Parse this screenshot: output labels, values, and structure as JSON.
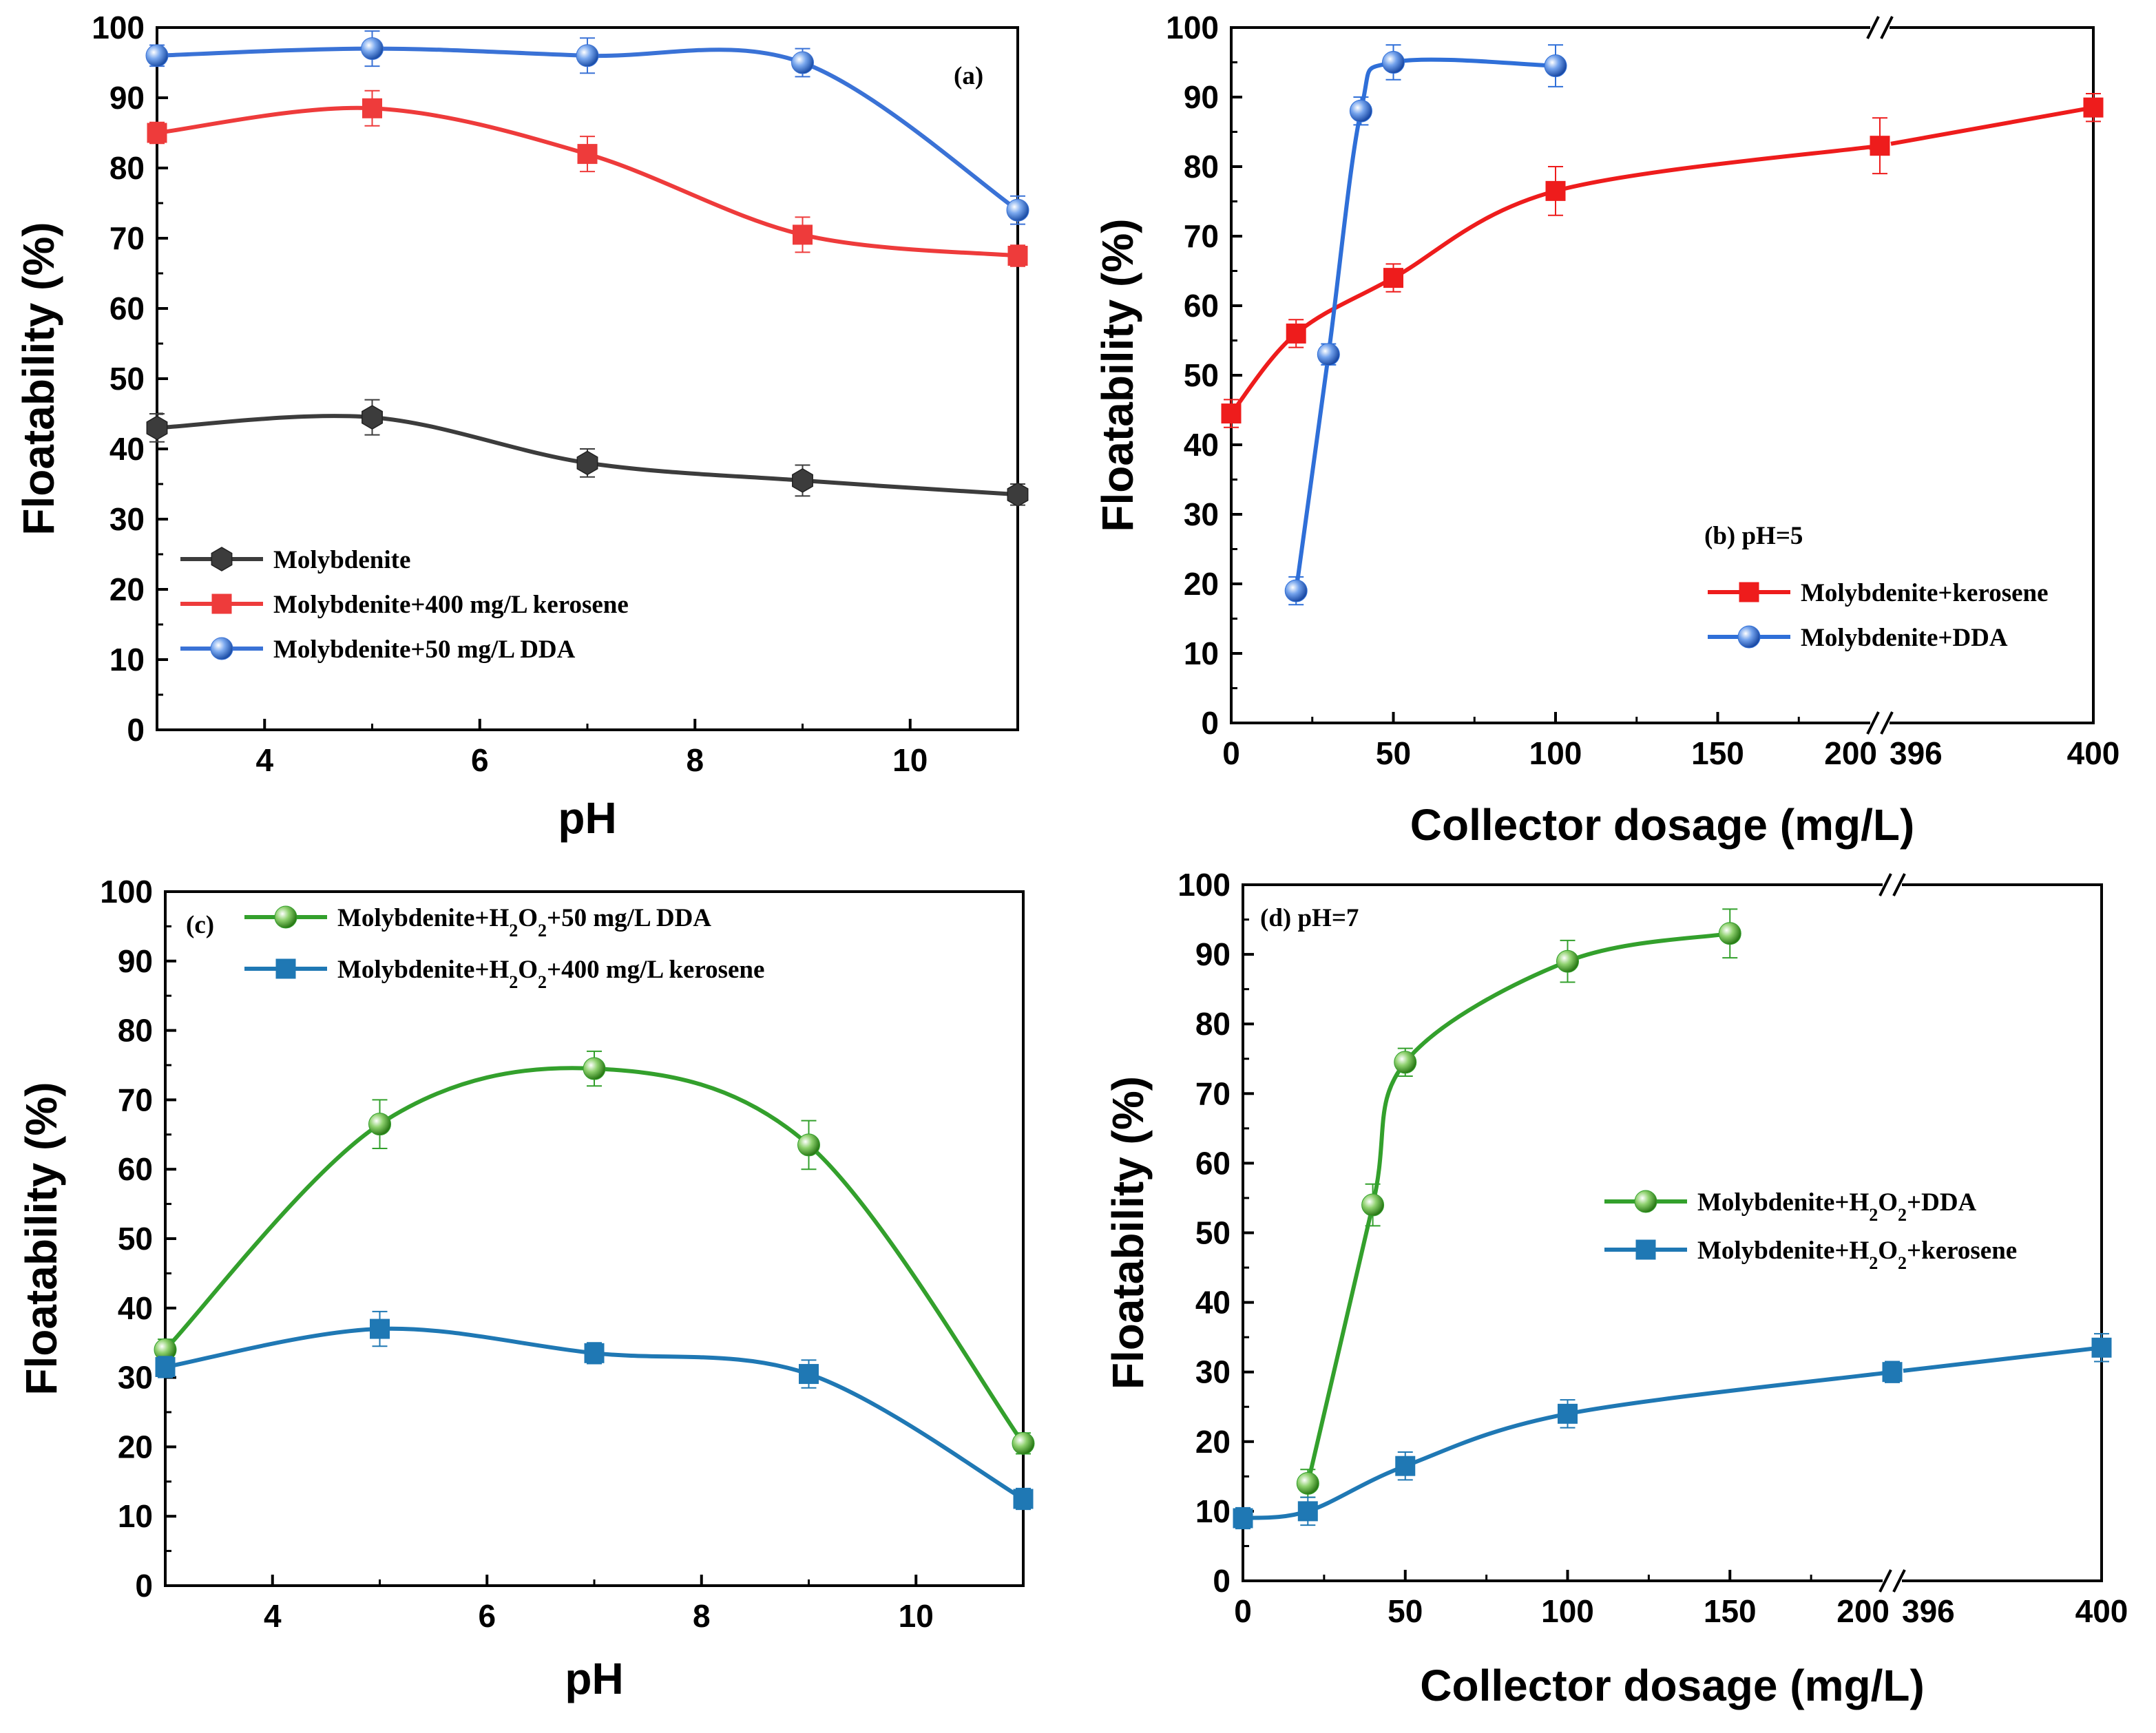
{
  "chart_data": [
    {
      "id": "a",
      "type": "line",
      "panel_label": "(a)",
      "xlabel": "pH",
      "ylabel": "Floatability (%)",
      "xlim": [
        3,
        11
      ],
      "ylim": [
        0,
        100
      ],
      "xticks": [
        4,
        6,
        8,
        10
      ],
      "yticks": [
        0,
        10,
        20,
        30,
        40,
        50,
        60,
        70,
        80,
        90,
        100
      ],
      "legend_position": "lower-left",
      "series": [
        {
          "name": "Molybdenite",
          "legend": [
            {
              "t": "Molybdenite"
            }
          ],
          "marker": "hexagon",
          "color": "#3c3c3c",
          "x": [
            3,
            5,
            7,
            9,
            11
          ],
          "y": [
            43,
            44.5,
            38,
            35.5,
            33.5
          ],
          "err": [
            2,
            2.5,
            2,
            2.2,
            1.5
          ]
        },
        {
          "name": "Molybdenite+400 mg/L kerosene",
          "legend": [
            {
              "t": "Molybdenite+400 mg/L kerosene"
            }
          ],
          "marker": "square",
          "color": "#ee3b3b",
          "x": [
            3,
            5,
            7,
            9,
            11
          ],
          "y": [
            85,
            88.5,
            82,
            70.5,
            67.5
          ],
          "err": [
            1.5,
            2.5,
            2.5,
            2.5,
            1.5
          ]
        },
        {
          "name": "Molybdenite+50 mg/L DDA",
          "legend": [
            {
              "t": "Molybdenite+50 mg/L DDA"
            }
          ],
          "marker": "sphere",
          "color": "#3a72d6",
          "x": [
            3,
            5,
            7,
            9,
            11
          ],
          "y": [
            96,
            97,
            96,
            95,
            74
          ],
          "err": [
            1.5,
            2.5,
            2.5,
            2,
            2
          ]
        }
      ]
    },
    {
      "id": "b",
      "type": "line",
      "panel_label": "(b) pH=5",
      "xlabel": "Collector dosage (mg/L)",
      "ylabel": "Floatability (%)",
      "xlim": [
        0,
        400
      ],
      "axis_break": [
        200,
        396
      ],
      "ylim": [
        0,
        100
      ],
      "xticks": [
        "0",
        "50",
        "100",
        "150",
        "200",
        "396",
        "400"
      ],
      "yticks": [
        0,
        10,
        20,
        30,
        40,
        50,
        60,
        70,
        80,
        90,
        100
      ],
      "legend_position": "lower-right",
      "series": [
        {
          "name": "Molybdenite+kerosene",
          "legend": [
            {
              "t": "Molybdenite+kerosene"
            }
          ],
          "marker": "square",
          "color": "#ee1c1c",
          "x": [
            0,
            20,
            50,
            100,
            200,
            400
          ],
          "y": [
            44.5,
            56,
            64,
            76.5,
            83,
            88.5
          ],
          "err": [
            2,
            2,
            2,
            3.5,
            4,
            2
          ]
        },
        {
          "name": "Molybdenite+DDA",
          "legend": [
            {
              "t": "Molybdenite+DDA"
            }
          ],
          "marker": "sphere",
          "color": "#2f6fd8",
          "x": [
            20,
            30,
            40,
            50,
            100
          ],
          "y": [
            19,
            53,
            88,
            95,
            94.5
          ],
          "err": [
            2,
            1.5,
            2,
            2.5,
            3
          ]
        }
      ]
    },
    {
      "id": "c",
      "type": "line",
      "panel_label": "(c)",
      "xlabel": "pH",
      "ylabel": "Floatability (%)",
      "xlim": [
        3,
        11
      ],
      "ylim": [
        0,
        100
      ],
      "xticks": [
        4,
        6,
        8,
        10
      ],
      "yticks": [
        0,
        10,
        20,
        30,
        40,
        50,
        60,
        70,
        80,
        90,
        100
      ],
      "legend_position": "top",
      "series": [
        {
          "name": "Molybdenite+H2O2+50 mg/L DDA",
          "legend": [
            {
              "t": "Molybdenite+H"
            },
            {
              "t": "2",
              "sub": true
            },
            {
              "t": "O"
            },
            {
              "t": "2",
              "sub": true
            },
            {
              "t": "+50 mg/L DDA"
            }
          ],
          "marker": "sphere",
          "color": "#33a02c",
          "x": [
            3,
            5,
            7,
            9,
            11
          ],
          "y": [
            34,
            66.5,
            74.5,
            63.5,
            20.5
          ],
          "err": [
            1.5,
            3.5,
            2.5,
            3.5,
            1.5
          ]
        },
        {
          "name": "Molybdenite+H2O2+400 mg/L kerosene",
          "legend": [
            {
              "t": "Molybdenite+H"
            },
            {
              "t": "2",
              "sub": true
            },
            {
              "t": "O"
            },
            {
              "t": "2",
              "sub": true
            },
            {
              "t": "+400 mg/L kerosene"
            }
          ],
          "marker": "square",
          "color": "#1f78b4",
          "x": [
            3,
            5,
            7,
            9,
            11
          ],
          "y": [
            31.5,
            37,
            33.5,
            30.5,
            12.5
          ],
          "err": [
            1.5,
            2.5,
            1.5,
            2,
            1.5
          ]
        }
      ]
    },
    {
      "id": "d",
      "type": "line",
      "panel_label": "(d) pH=7",
      "xlabel": "Collector dosage (mg/L)",
      "ylabel": "Floatability (%)",
      "xlim": [
        0,
        400
      ],
      "axis_break": [
        200,
        396
      ],
      "ylim": [
        0,
        100
      ],
      "xticks": [
        "0",
        "50",
        "100",
        "150",
        "200",
        "396",
        "400"
      ],
      "yticks": [
        0,
        10,
        20,
        30,
        40,
        50,
        60,
        70,
        80,
        90,
        100
      ],
      "legend_position": "right",
      "series": [
        {
          "name": "Molybdenite+H2O2+DDA",
          "legend": [
            {
              "t": "Molybdenite+H"
            },
            {
              "t": "2",
              "sub": true
            },
            {
              "t": "O"
            },
            {
              "t": "2",
              "sub": true
            },
            {
              "t": "+DDA"
            }
          ],
          "marker": "sphere",
          "color": "#33a02c",
          "x": [
            20,
            40,
            50,
            100,
            150
          ],
          "y": [
            14,
            54,
            74.5,
            89,
            93
          ],
          "err": [
            2,
            3,
            2,
            3,
            3.5
          ]
        },
        {
          "name": "Molybdenite+H2O2+kerosene",
          "legend": [
            {
              "t": "Molybdenite+H"
            },
            {
              "t": "2",
              "sub": true
            },
            {
              "t": "O"
            },
            {
              "t": "2",
              "sub": true
            },
            {
              "t": "+kerosene"
            }
          ],
          "marker": "square",
          "color": "#1f78b4",
          "x": [
            0,
            20,
            50,
            100,
            200,
            400
          ],
          "y": [
            9,
            10,
            16.5,
            24,
            30,
            33.5
          ],
          "err": [
            1.5,
            2,
            2,
            2,
            1.5,
            2
          ]
        }
      ]
    }
  ]
}
